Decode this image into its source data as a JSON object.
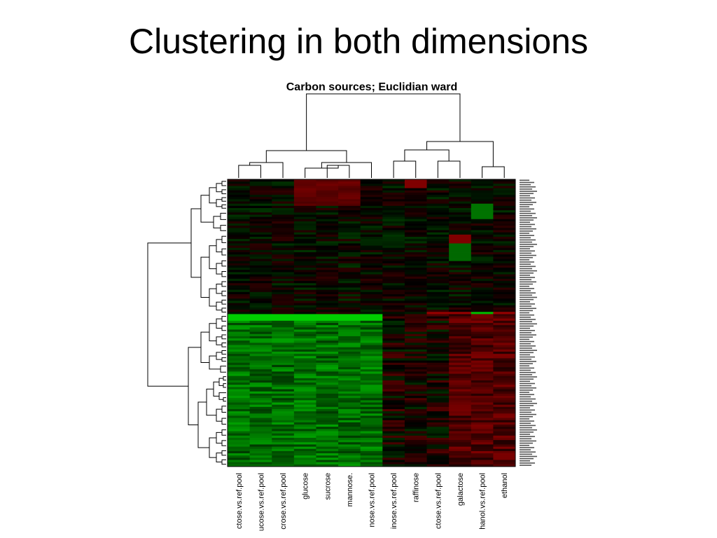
{
  "slide": {
    "title": "Clustering in both dimensions"
  },
  "chart_data": {
    "type": "heatmap",
    "title": "Carbon sources; Euclidian ward",
    "columns": [
      "ctose.vs.ref.pool",
      "ucose.vs.ref.pool",
      "crose.vs.ref.pool",
      "glucose",
      "sucrose",
      "mannose.",
      "nose.vs.ref.pool",
      "inose.vs.ref.pool",
      "raffinose",
      "ctose.vs.ref.pool",
      "galactose",
      "hanol.vs.ref.pool",
      "ethanol"
    ],
    "color_scale": {
      "low": "#00e600",
      "mid": "#000000",
      "high": "#d40000"
    },
    "row_count": 130,
    "row_clusters": [
      "upper block: near-zero, mixed red/green",
      "lower block: green in first 7 columns, red in last 6 columns"
    ],
    "column_dendrogram": true,
    "row_dendrogram": true
  }
}
